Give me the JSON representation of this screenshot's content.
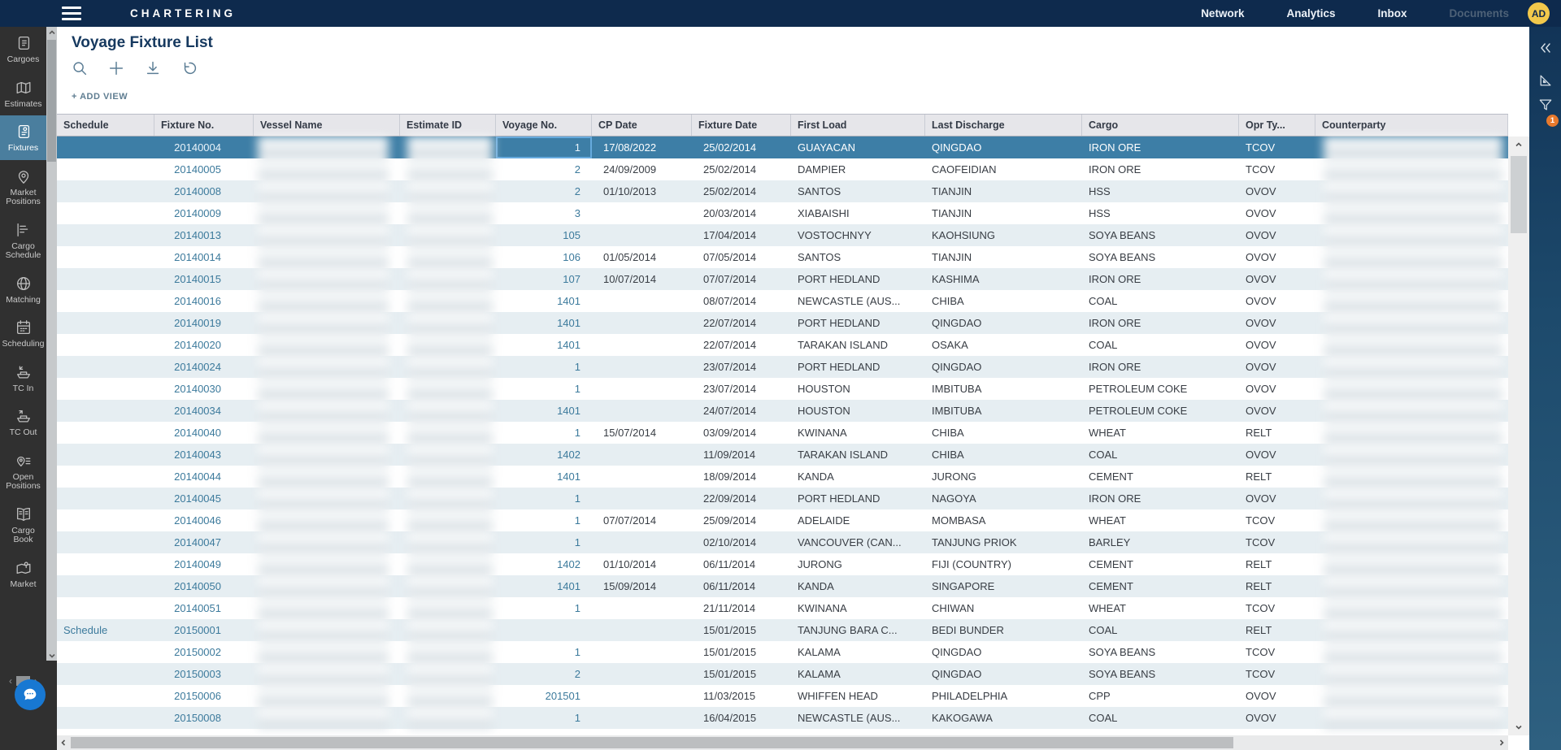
{
  "colors": {
    "topbar_bg": "#0e2a4d",
    "sidebar_active": "#4a7e9e",
    "selection": "#3d7ea6",
    "link_blue": "#3c7a9c",
    "avatar_yellow": "#f2c84b",
    "badge_orange": "#e87a2d",
    "chat_blue": "#1878d2"
  },
  "topbar": {
    "brand": "CHARTERING",
    "nav": [
      {
        "label": "Network"
      },
      {
        "label": "Analytics"
      },
      {
        "label": "Inbox"
      },
      {
        "label": "Documents",
        "muted": true
      }
    ],
    "avatar_initials": "AD"
  },
  "sidebar": {
    "items": [
      {
        "label": "Cargoes",
        "icon": "cargoes-icon"
      },
      {
        "label": "Estimates",
        "icon": "estimates-icon"
      },
      {
        "label": "Fixtures",
        "icon": "fixtures-icon",
        "active": true
      },
      {
        "label": "Market Positions",
        "icon": "market-positions-icon"
      },
      {
        "label": "Cargo Schedule",
        "icon": "cargo-schedule-icon"
      },
      {
        "label": "Matching",
        "icon": "matching-icon"
      },
      {
        "label": "Scheduling",
        "icon": "scheduling-icon"
      },
      {
        "label": "TC In",
        "icon": "tc-in-icon"
      },
      {
        "label": "TC Out",
        "icon": "tc-out-icon"
      },
      {
        "label": "Open Positions",
        "icon": "open-positions-icon"
      },
      {
        "label": "Cargo Book",
        "icon": "cargo-book-icon"
      },
      {
        "label": "Market",
        "icon": "market-icon"
      }
    ]
  },
  "page": {
    "title": "Voyage Fixture List",
    "toolbar": [
      {
        "name": "search-icon"
      },
      {
        "name": "add-icon"
      },
      {
        "name": "download-icon"
      },
      {
        "name": "reset-icon"
      }
    ],
    "add_view_label": "+ ADD VIEW"
  },
  "table": {
    "columns": [
      {
        "key": "schedule",
        "label": "Schedule"
      },
      {
        "key": "fixture_no",
        "label": "Fixture No."
      },
      {
        "key": "vessel_name",
        "label": "Vessel Name",
        "redacted": true
      },
      {
        "key": "estimate_id",
        "label": "Estimate ID",
        "redacted": true
      },
      {
        "key": "voyage_no",
        "label": "Voyage No."
      },
      {
        "key": "cp_date",
        "label": "CP Date"
      },
      {
        "key": "fixture_date",
        "label": "Fixture Date"
      },
      {
        "key": "first_load",
        "label": "First Load"
      },
      {
        "key": "last_discharge",
        "label": "Last Discharge"
      },
      {
        "key": "cargo",
        "label": "Cargo"
      },
      {
        "key": "opr_type",
        "label": "Opr Ty..."
      },
      {
        "key": "counterparty",
        "label": "Counterparty",
        "redacted": true
      }
    ],
    "selected_fixture": "20140004",
    "focused_cell": {
      "row": 0,
      "column": "voyage_no"
    },
    "rows": [
      {
        "schedule": "",
        "fixture_no": "20140004",
        "voyage_no": "1",
        "cp_date": "17/08/2022",
        "fixture_date": "25/02/2014",
        "first_load": "GUAYACAN",
        "last_discharge": "QINGDAO",
        "cargo": "IRON ORE",
        "opr_type": "TCOV"
      },
      {
        "schedule": "",
        "fixture_no": "20140005",
        "voyage_no": "2",
        "cp_date": "24/09/2009",
        "fixture_date": "25/02/2014",
        "first_load": "DAMPIER",
        "last_discharge": "CAOFEIDIAN",
        "cargo": "IRON ORE",
        "opr_type": "TCOV"
      },
      {
        "schedule": "",
        "fixture_no": "20140008",
        "voyage_no": "2",
        "cp_date": "01/10/2013",
        "fixture_date": "25/02/2014",
        "first_load": "SANTOS",
        "last_discharge": "TIANJIN",
        "cargo": "HSS",
        "opr_type": "OVOV"
      },
      {
        "schedule": "",
        "fixture_no": "20140009",
        "voyage_no": "3",
        "cp_date": "",
        "fixture_date": "20/03/2014",
        "first_load": "XIABAISHI",
        "last_discharge": "TIANJIN",
        "cargo": "HSS",
        "opr_type": "OVOV"
      },
      {
        "schedule": "",
        "fixture_no": "20140013",
        "voyage_no": "105",
        "cp_date": "",
        "fixture_date": "17/04/2014",
        "first_load": "VOSTOCHNYY",
        "last_discharge": "KAOHSIUNG",
        "cargo": "SOYA BEANS",
        "opr_type": "OVOV"
      },
      {
        "schedule": "",
        "fixture_no": "20140014",
        "voyage_no": "106",
        "cp_date": "01/05/2014",
        "fixture_date": "07/05/2014",
        "first_load": "SANTOS",
        "last_discharge": "TIANJIN",
        "cargo": "SOYA BEANS",
        "opr_type": "OVOV"
      },
      {
        "schedule": "",
        "fixture_no": "20140015",
        "voyage_no": "107",
        "cp_date": "10/07/2014",
        "fixture_date": "07/07/2014",
        "first_load": "PORT HEDLAND",
        "last_discharge": "KASHIMA",
        "cargo": "IRON ORE",
        "opr_type": "OVOV"
      },
      {
        "schedule": "",
        "fixture_no": "20140016",
        "voyage_no": "1401",
        "cp_date": "",
        "fixture_date": "08/07/2014",
        "first_load": "NEWCASTLE (AUS...",
        "last_discharge": "CHIBA",
        "cargo": "COAL",
        "opr_type": "OVOV"
      },
      {
        "schedule": "",
        "fixture_no": "20140019",
        "voyage_no": "1401",
        "cp_date": "",
        "fixture_date": "22/07/2014",
        "first_load": "PORT HEDLAND",
        "last_discharge": "QINGDAO",
        "cargo": "IRON ORE",
        "opr_type": "OVOV"
      },
      {
        "schedule": "",
        "fixture_no": "20140020",
        "voyage_no": "1401",
        "cp_date": "",
        "fixture_date": "22/07/2014",
        "first_load": "TARAKAN ISLAND",
        "last_discharge": "OSAKA",
        "cargo": "COAL",
        "opr_type": "OVOV"
      },
      {
        "schedule": "",
        "fixture_no": "20140024",
        "voyage_no": "1",
        "cp_date": "",
        "fixture_date": "23/07/2014",
        "first_load": "PORT HEDLAND",
        "last_discharge": "QINGDAO",
        "cargo": "IRON ORE",
        "opr_type": "OVOV"
      },
      {
        "schedule": "",
        "fixture_no": "20140030",
        "voyage_no": "1",
        "cp_date": "",
        "fixture_date": "23/07/2014",
        "first_load": "HOUSTON",
        "last_discharge": "IMBITUBA",
        "cargo": "PETROLEUM COKE",
        "opr_type": "OVOV"
      },
      {
        "schedule": "",
        "fixture_no": "20140034",
        "voyage_no": "1401",
        "cp_date": "",
        "fixture_date": "24/07/2014",
        "first_load": "HOUSTON",
        "last_discharge": "IMBITUBA",
        "cargo": "PETROLEUM COKE",
        "opr_type": "OVOV"
      },
      {
        "schedule": "",
        "fixture_no": "20140040",
        "voyage_no": "1",
        "cp_date": "15/07/2014",
        "fixture_date": "03/09/2014",
        "first_load": "KWINANA",
        "last_discharge": "CHIBA",
        "cargo": "WHEAT",
        "opr_type": "RELT"
      },
      {
        "schedule": "",
        "fixture_no": "20140043",
        "voyage_no": "1402",
        "cp_date": "",
        "fixture_date": "11/09/2014",
        "first_load": "TARAKAN ISLAND",
        "last_discharge": "CHIBA",
        "cargo": "COAL",
        "opr_type": "OVOV"
      },
      {
        "schedule": "",
        "fixture_no": "20140044",
        "voyage_no": "1401",
        "cp_date": "",
        "fixture_date": "18/09/2014",
        "first_load": "KANDA",
        "last_discharge": "JURONG",
        "cargo": "CEMENT",
        "opr_type": "RELT"
      },
      {
        "schedule": "",
        "fixture_no": "20140045",
        "voyage_no": "1",
        "cp_date": "",
        "fixture_date": "22/09/2014",
        "first_load": "PORT HEDLAND",
        "last_discharge": "NAGOYA",
        "cargo": "IRON ORE",
        "opr_type": "OVOV"
      },
      {
        "schedule": "",
        "fixture_no": "20140046",
        "voyage_no": "1",
        "cp_date": "07/07/2014",
        "fixture_date": "25/09/2014",
        "first_load": "ADELAIDE",
        "last_discharge": "MOMBASA",
        "cargo": "WHEAT",
        "opr_type": "TCOV"
      },
      {
        "schedule": "",
        "fixture_no": "20140047",
        "voyage_no": "1",
        "cp_date": "",
        "fixture_date": "02/10/2014",
        "first_load": "VANCOUVER (CAN...",
        "last_discharge": "TANJUNG PRIOK",
        "cargo": "BARLEY",
        "opr_type": "TCOV"
      },
      {
        "schedule": "",
        "fixture_no": "20140049",
        "voyage_no": "1402",
        "cp_date": "01/10/2014",
        "fixture_date": "06/11/2014",
        "first_load": "JURONG",
        "last_discharge": "FIJI (COUNTRY)",
        "cargo": "CEMENT",
        "opr_type": "RELT"
      },
      {
        "schedule": "",
        "fixture_no": "20140050",
        "voyage_no": "1401",
        "cp_date": "15/09/2014",
        "fixture_date": "06/11/2014",
        "first_load": "KANDA",
        "last_discharge": "SINGAPORE",
        "cargo": "CEMENT",
        "opr_type": "RELT"
      },
      {
        "schedule": "",
        "fixture_no": "20140051",
        "voyage_no": "1",
        "cp_date": "",
        "fixture_date": "21/11/2014",
        "first_load": "KWINANA",
        "last_discharge": "CHIWAN",
        "cargo": "WHEAT",
        "opr_type": "TCOV"
      },
      {
        "schedule": "Schedule",
        "fixture_no": "20150001",
        "voyage_no": "",
        "cp_date": "",
        "fixture_date": "15/01/2015",
        "first_load": "TANJUNG BARA C...",
        "last_discharge": "BEDI BUNDER",
        "cargo": "COAL",
        "opr_type": "RELT"
      },
      {
        "schedule": "",
        "fixture_no": "20150002",
        "voyage_no": "1",
        "cp_date": "",
        "fixture_date": "15/01/2015",
        "first_load": "KALAMA",
        "last_discharge": "QINGDAO",
        "cargo": "SOYA BEANS",
        "opr_type": "TCOV"
      },
      {
        "schedule": "",
        "fixture_no": "20150003",
        "voyage_no": "2",
        "cp_date": "",
        "fixture_date": "15/01/2015",
        "first_load": "KALAMA",
        "last_discharge": "QINGDAO",
        "cargo": "SOYA BEANS",
        "opr_type": "TCOV"
      },
      {
        "schedule": "",
        "fixture_no": "20150006",
        "voyage_no": "201501",
        "cp_date": "",
        "fixture_date": "11/03/2015",
        "first_load": "WHIFFEN HEAD",
        "last_discharge": "PHILADELPHIA",
        "cargo": "CPP",
        "opr_type": "OVOV"
      },
      {
        "schedule": "",
        "fixture_no": "20150008",
        "voyage_no": "1",
        "cp_date": "",
        "fixture_date": "16/04/2015",
        "first_load": "NEWCASTLE (AUS...",
        "last_discharge": "KAKOGAWA",
        "cargo": "COAL",
        "opr_type": "OVOV"
      }
    ]
  },
  "right_panel": {
    "icons": [
      {
        "name": "collapse-icon"
      },
      {
        "name": "set-square-icon"
      },
      {
        "name": "filter-icon",
        "badge": "1"
      }
    ],
    "filter_badge_count": "1"
  }
}
